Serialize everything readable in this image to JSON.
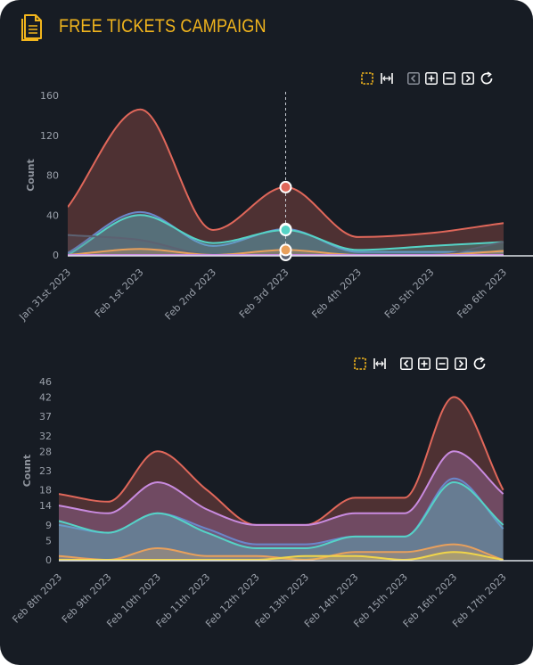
{
  "header": {
    "title": "FREE TICKETS CAMPAIGN",
    "icon": "document-icon",
    "accent_color": "#f2b51d"
  },
  "toolbar": {
    "tools": [
      "selection-zoom-icon",
      "pan-icon",
      "previous-icon",
      "zoom-in-icon",
      "zoom-out-icon",
      "next-icon",
      "reset-icon"
    ],
    "active_color": "#f2b51d",
    "icon_color": "#ffffff"
  },
  "chart_data": [
    {
      "type": "area",
      "ylabel": "Count",
      "categories": [
        "Jan 31st 2023",
        "Feb 1st 2023",
        "Feb 2nd 2023",
        "Feb 3rd 2023",
        "Feb 4th 2023",
        "Feb 5th 2023",
        "Feb 6th 2023"
      ],
      "y_ticks": [
        0,
        40,
        80,
        120,
        160
      ],
      "ylim": [
        0,
        160
      ],
      "tooltip_crosshair_at": "Feb 3rd 2023",
      "series": [
        {
          "color": "#e0675a",
          "values": [
            48,
            146,
            25,
            68,
            18,
            22,
            32
          ]
        },
        {
          "color": "#6b86c9",
          "values": [
            2,
            43,
            9,
            26,
            3,
            3,
            3
          ]
        },
        {
          "color": "#55d3c6",
          "values": [
            0,
            40,
            12,
            25,
            5,
            9,
            13
          ]
        },
        {
          "color": "#5c6272",
          "values": [
            20,
            15,
            0,
            0,
            0,
            0,
            13
          ]
        },
        {
          "color": "#e8a05c",
          "values": [
            0,
            6,
            0,
            5,
            0,
            0,
            4
          ]
        },
        {
          "color": "#c98be0",
          "values": [
            0,
            0,
            0,
            0,
            0,
            0,
            0
          ]
        }
      ],
      "grid": false
    },
    {
      "type": "area",
      "ylabel": "Count",
      "categories": [
        "Feb 8th 2023",
        "Feb 9th 2023",
        "Feb 10th 2023",
        "Feb 11th 2023",
        "Feb 12th 2023",
        "Feb 13th 2023",
        "Feb 14th 2023",
        "Feb 15th 2023",
        "Feb 16th 2023",
        "Feb 17th 2023"
      ],
      "y_ticks": [
        0,
        5,
        9,
        14,
        18,
        23,
        28,
        32,
        37,
        42,
        46
      ],
      "ylim": [
        0,
        46
      ],
      "series": [
        {
          "color": "#e0675a",
          "values": [
            17,
            15,
            28,
            18,
            9,
            9,
            16,
            16,
            42,
            18
          ]
        },
        {
          "color": "#c98be0",
          "values": [
            14,
            12,
            20,
            13,
            9,
            9,
            12,
            12,
            28,
            17
          ]
        },
        {
          "color": "#6b86c9",
          "values": [
            9,
            7,
            12,
            8,
            4,
            4,
            6,
            6,
            21,
            8
          ]
        },
        {
          "color": "#55d3c6",
          "values": [
            10,
            7,
            12,
            7,
            3,
            3,
            6,
            6,
            20,
            9
          ]
        },
        {
          "color": "#e8a05c",
          "values": [
            1,
            0,
            3,
            1,
            1,
            0,
            2,
            2,
            4,
            0
          ]
        },
        {
          "color": "#f0d54a",
          "values": [
            0,
            0,
            0,
            0,
            0,
            1,
            1,
            0,
            2,
            0
          ]
        }
      ],
      "grid": false
    }
  ]
}
